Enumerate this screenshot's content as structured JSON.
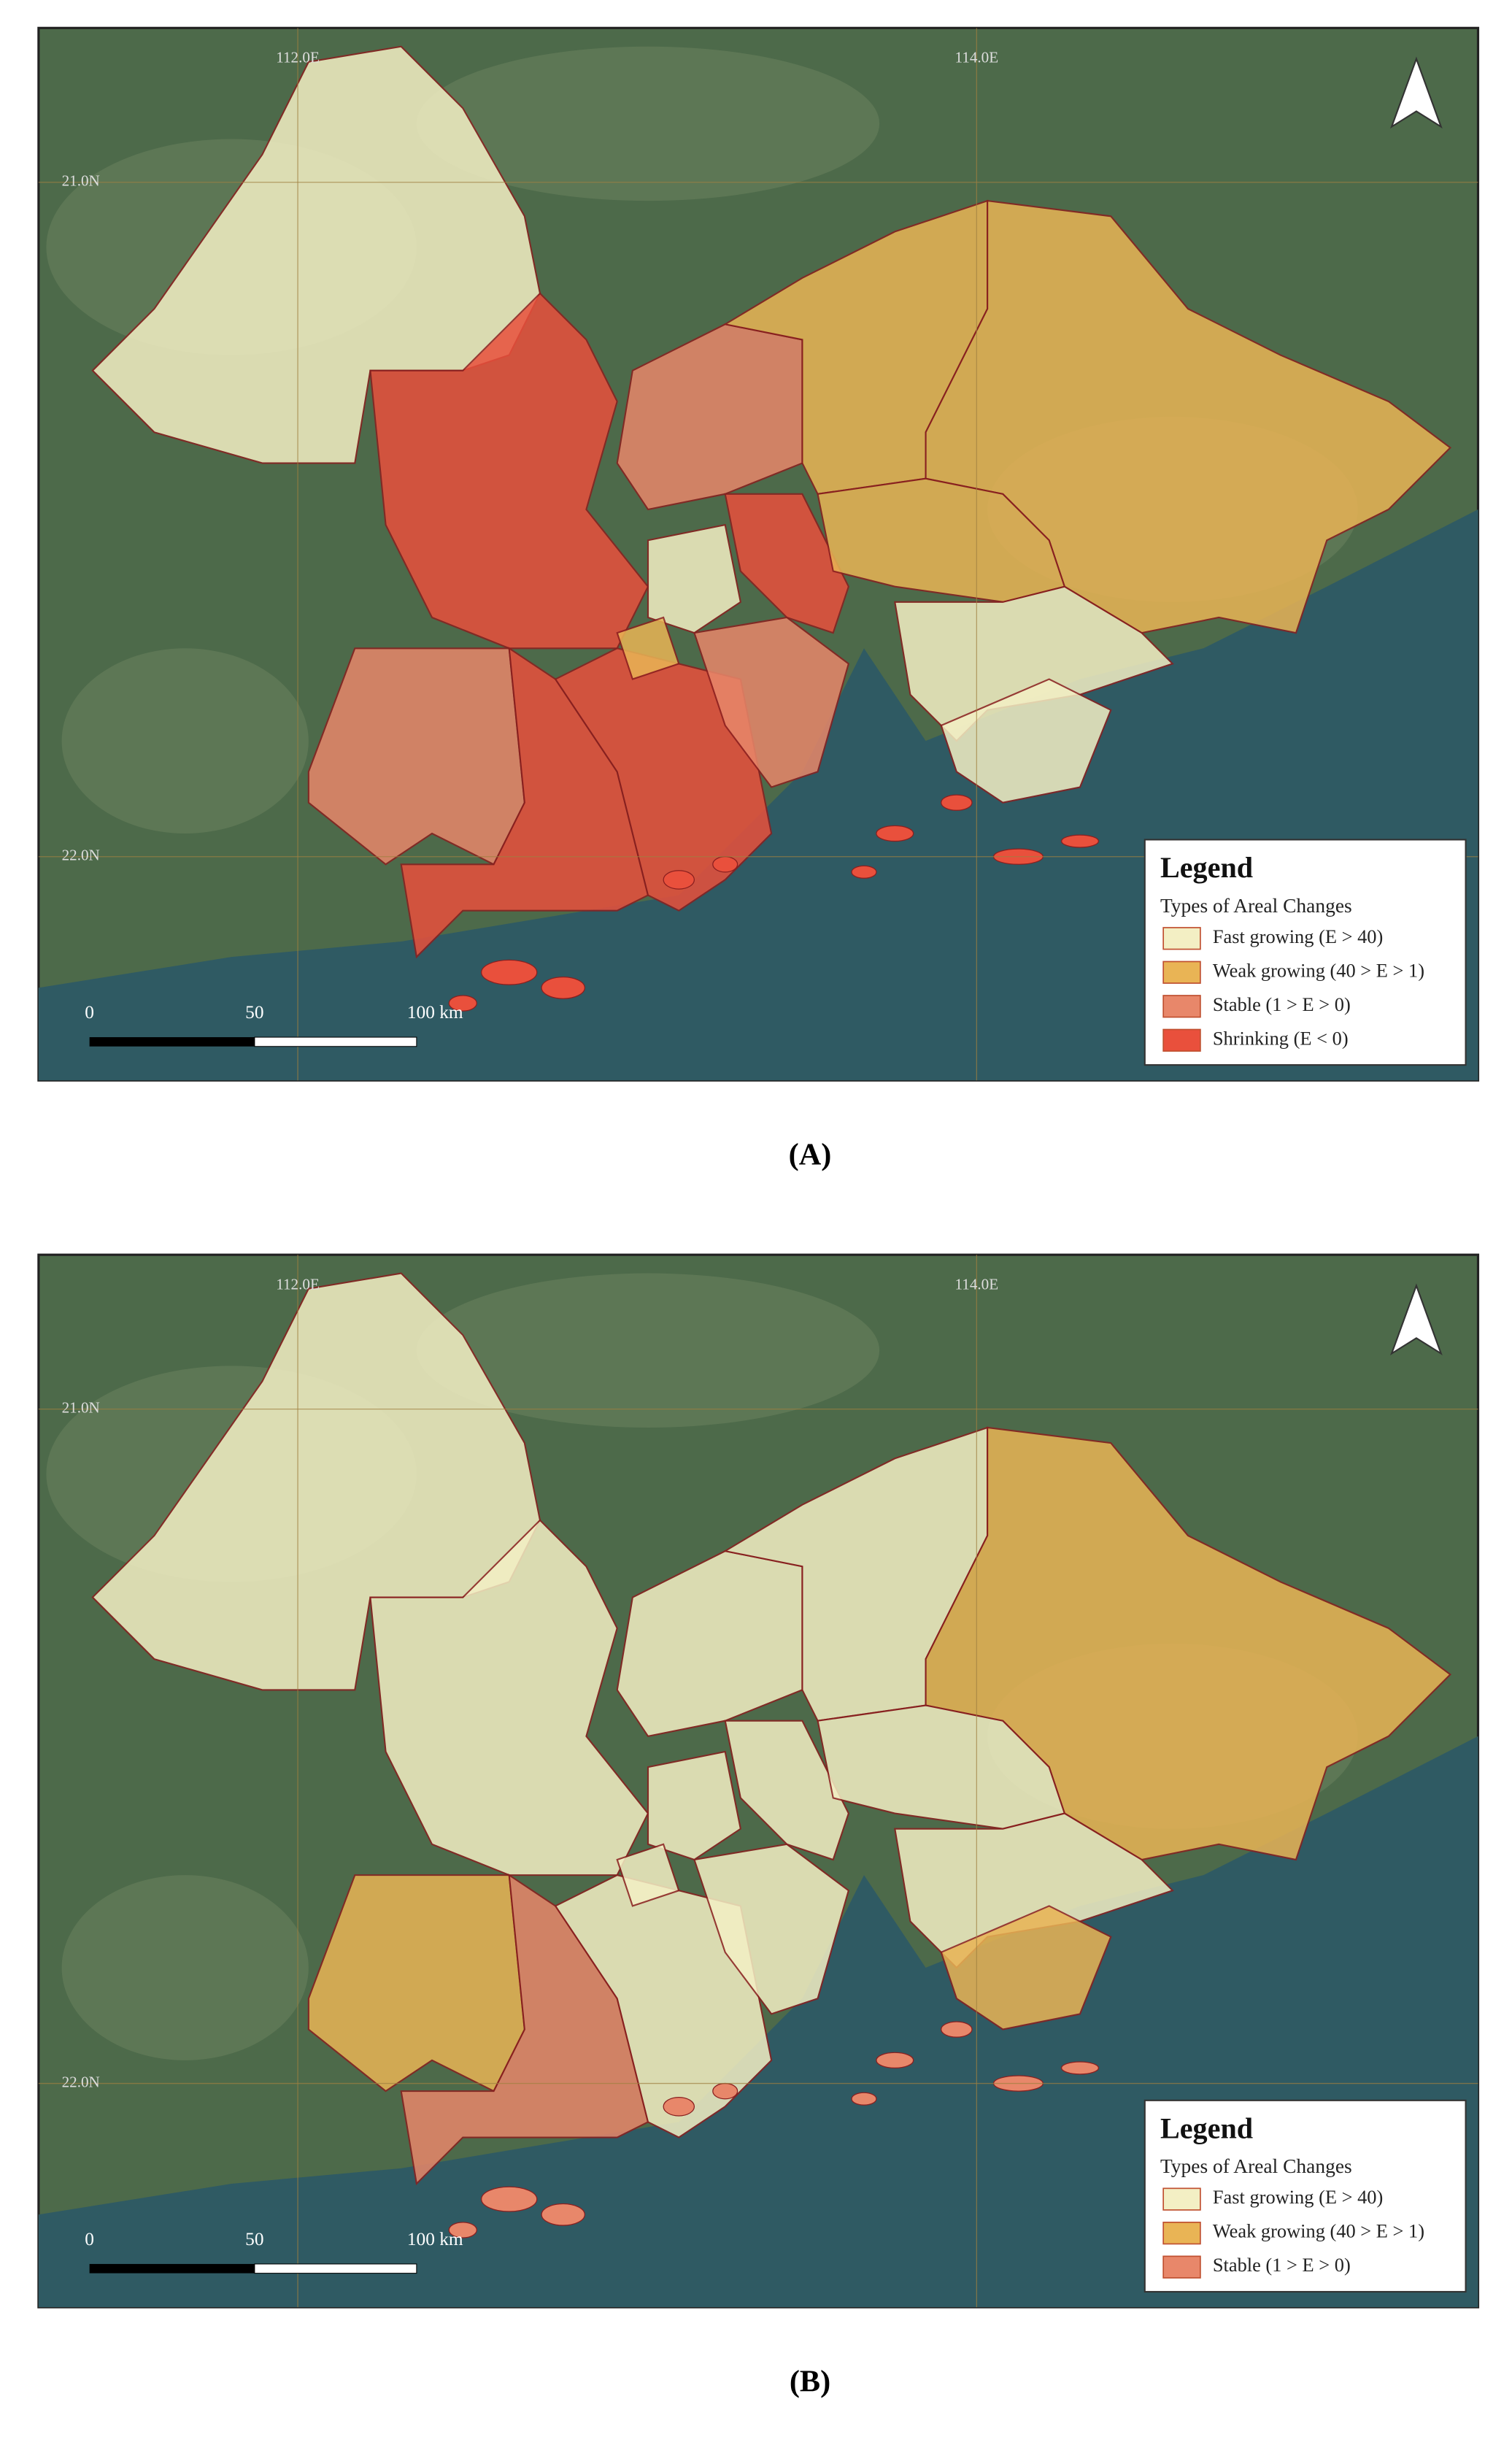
{
  "panels": [
    {
      "label": "(A)",
      "lon_labels": [
        "112.0E",
        "114.0E"
      ],
      "lat_labels": [
        "21.0N",
        "22.0N"
      ],
      "scale_labels": [
        "0",
        "50",
        "100 km"
      ],
      "legend": {
        "title": "Legend",
        "subtitle": "Types of Areal Changes",
        "entries": [
          {
            "text": "Fast growing (E > 40)",
            "color": "#f3efc4"
          },
          {
            "text": "Weak growing (40 > E > 1)",
            "color": "#e9b455"
          },
          {
            "text": "Stable (1 > E > 0)",
            "color": "#e8876a"
          },
          {
            "text": "Shrinking (E < 0)",
            "color": "#e9503c"
          }
        ]
      }
    },
    {
      "label": "(B)",
      "lon_labels": [
        "112.0E",
        "114.0E"
      ],
      "lat_labels": [
        "21.0N",
        "22.0N"
      ],
      "scale_labels": [
        "0",
        "50",
        "100 km"
      ],
      "legend": {
        "title": "Legend",
        "subtitle": "Types of Areal Changes",
        "entries": [
          {
            "text": "Fast growing (E > 40)",
            "color": "#f3efc4"
          },
          {
            "text": "Weak growing (40 > E > 1)",
            "color": "#e9b455"
          },
          {
            "text": "Stable (1 > E > 0)",
            "color": "#e8876a"
          }
        ]
      }
    }
  ]
}
